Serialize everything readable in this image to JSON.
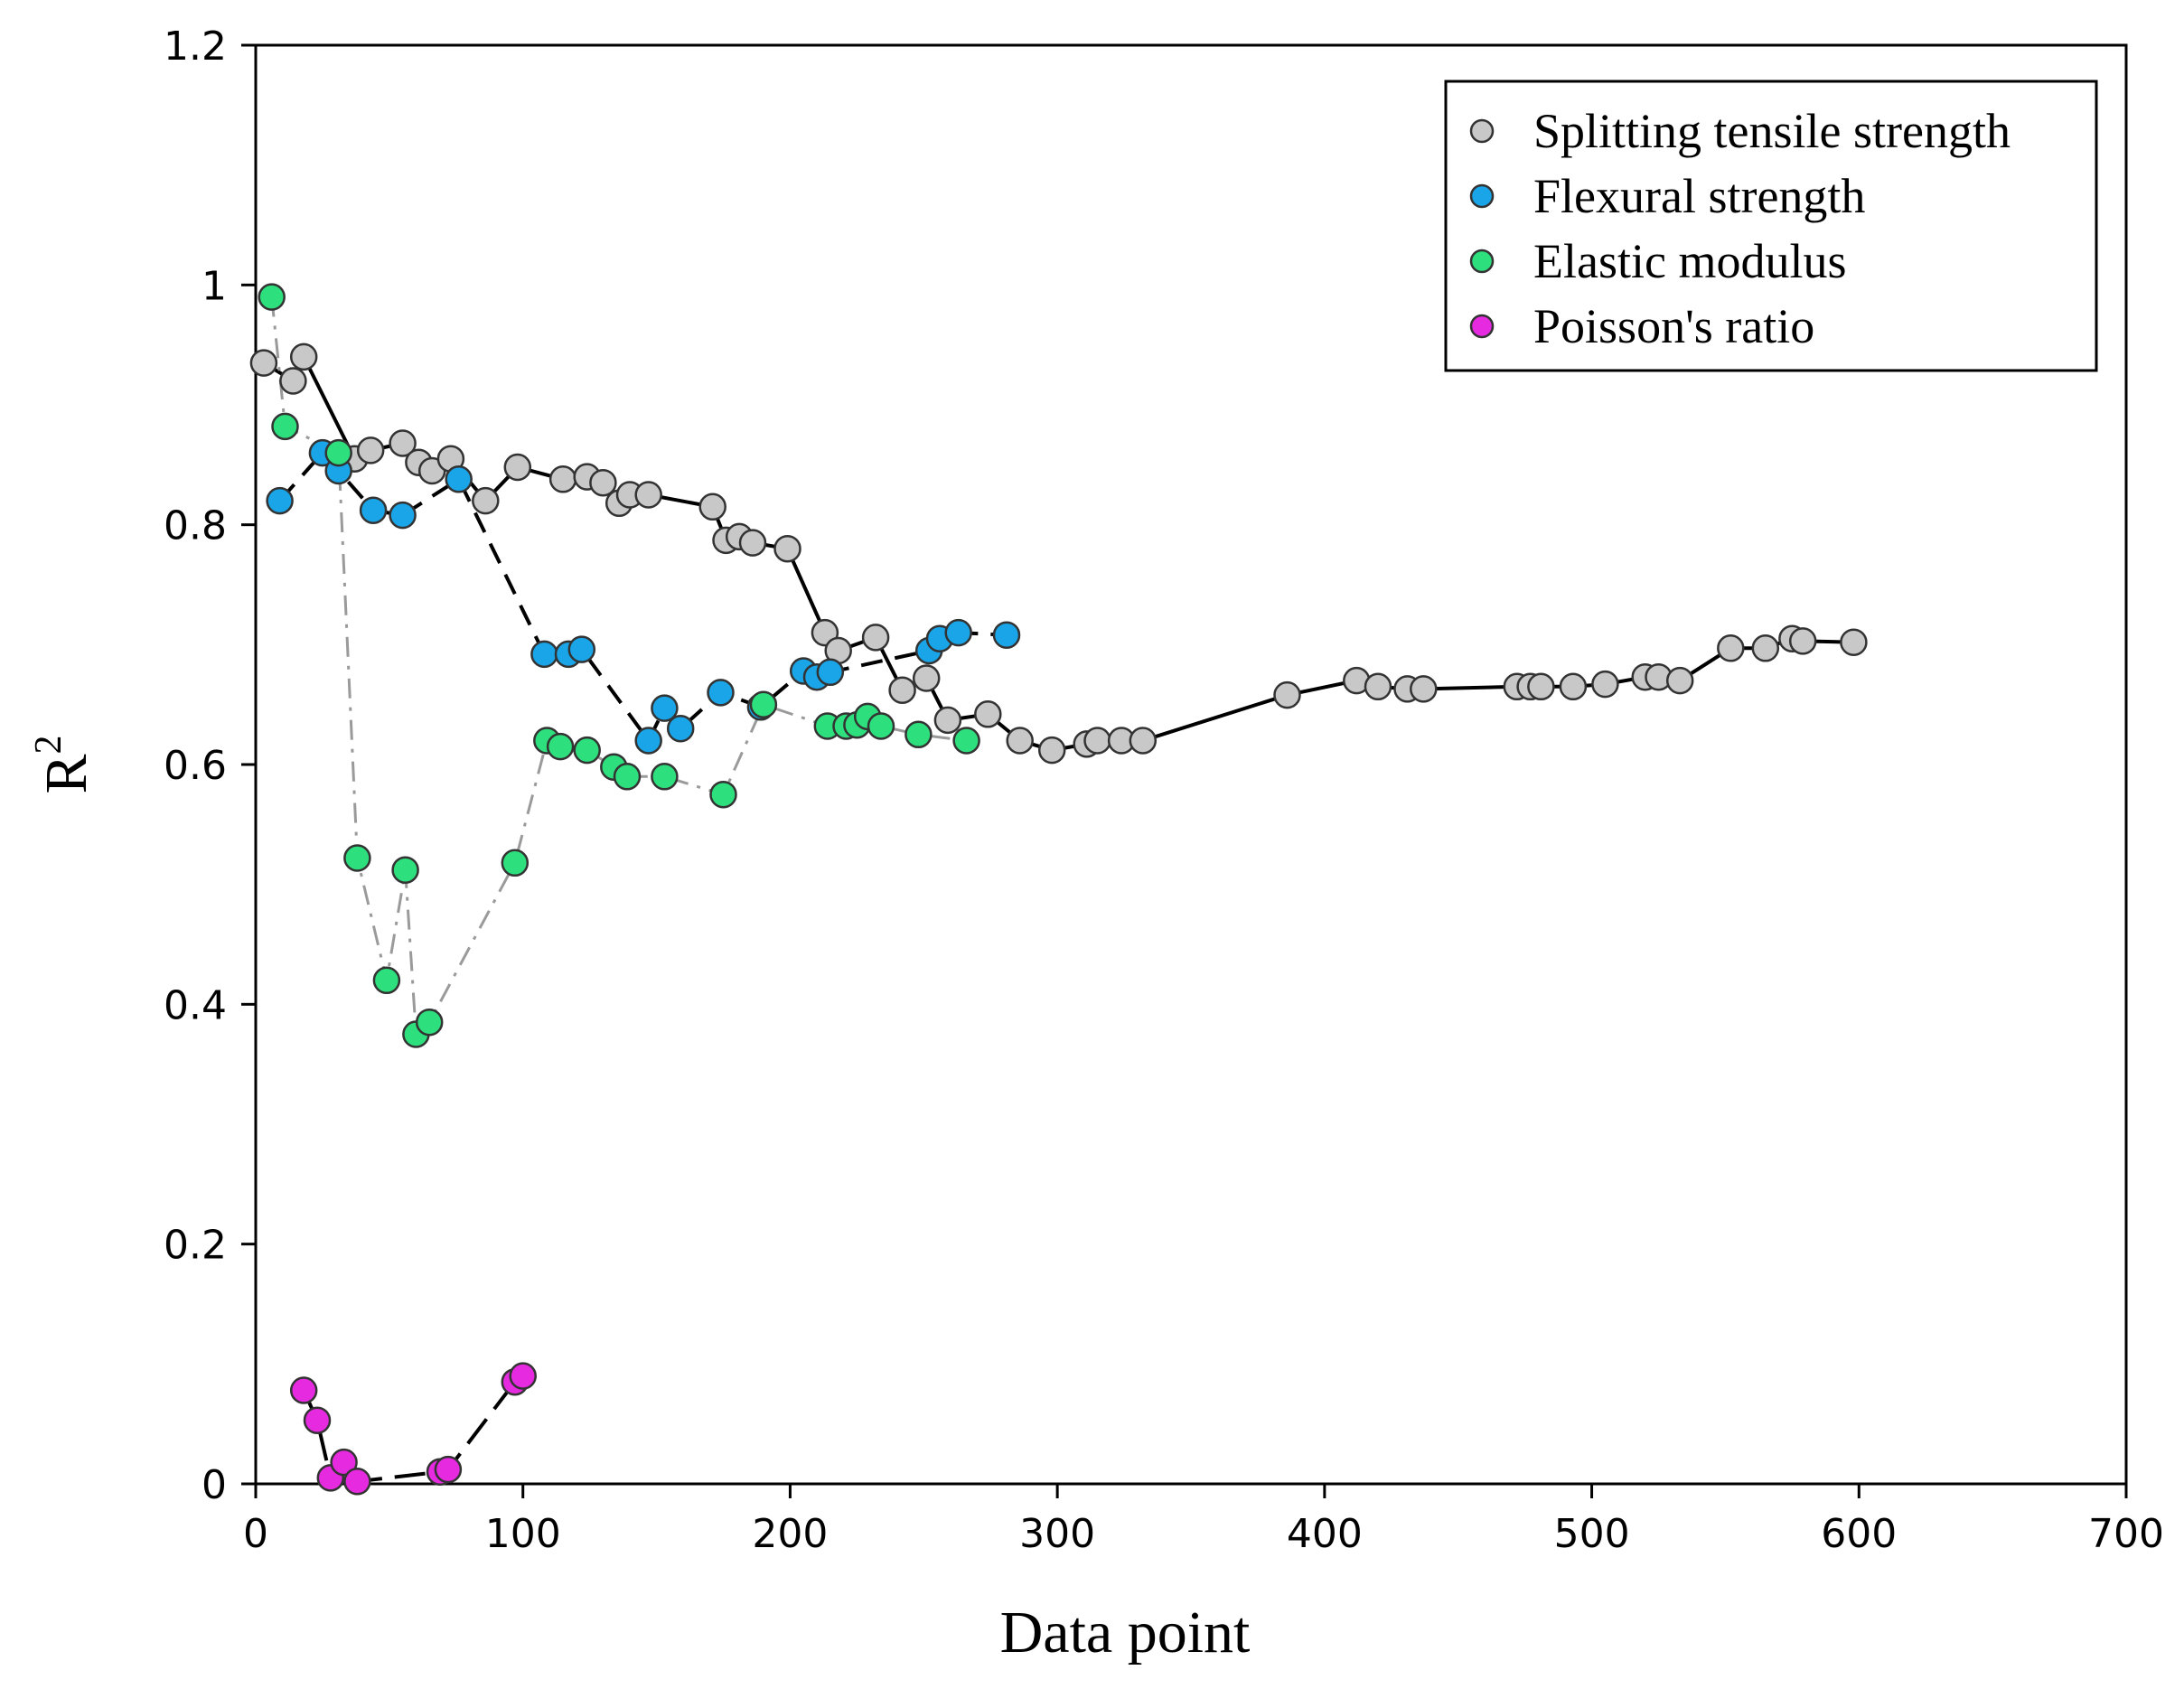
{
  "chart_data": {
    "type": "scatter",
    "title": "",
    "xlabel": "Data point",
    "ylabel": "R",
    "ylabel_superscript": "2",
    "xlim": [
      0,
      700
    ],
    "ylim": [
      0,
      1.2
    ],
    "xticks": [
      0,
      100,
      200,
      300,
      400,
      500,
      600,
      700
    ],
    "yticks": [
      0,
      0.2,
      0.4,
      0.6,
      0.8,
      1,
      1.2
    ],
    "xtick_labels": [
      "0",
      "100",
      "200",
      "300",
      "400",
      "500",
      "600",
      "700"
    ],
    "ytick_labels": [
      "0",
      "0.2",
      "0.4",
      "0.6",
      "0.8",
      "1",
      "1.2"
    ],
    "grid": false,
    "legend_position": "top-right",
    "series": [
      {
        "name": "Splitting tensile strength",
        "color": "#c8c8c8",
        "line_style": "solid",
        "line_color": "#000000",
        "points": [
          [
            3,
            0.935
          ],
          [
            14,
            0.92
          ],
          [
            18,
            0.94
          ],
          [
            37,
            0.855
          ],
          [
            43,
            0.862
          ],
          [
            55,
            0.868
          ],
          [
            61,
            0.852
          ],
          [
            66,
            0.845
          ],
          [
            73,
            0.855
          ],
          [
            86,
            0.82
          ],
          [
            98,
            0.848
          ],
          [
            115,
            0.838
          ],
          [
            124,
            0.84
          ],
          [
            130,
            0.835
          ],
          [
            136,
            0.818
          ],
          [
            140,
            0.825
          ],
          [
            147,
            0.825
          ],
          [
            171,
            0.815
          ],
          [
            176,
            0.787
          ],
          [
            181,
            0.79
          ],
          [
            186,
            0.785
          ],
          [
            199,
            0.78
          ],
          [
            213,
            0.71
          ],
          [
            218,
            0.695
          ],
          [
            232,
            0.706
          ],
          [
            242,
            0.662
          ],
          [
            251,
            0.672
          ],
          [
            259,
            0.637
          ],
          [
            274,
            0.642
          ],
          [
            286,
            0.62
          ],
          [
            298,
            0.612
          ],
          [
            311,
            0.617
          ],
          [
            315,
            0.62
          ],
          [
            324,
            0.62
          ],
          [
            332,
            0.62
          ],
          [
            386,
            0.658
          ],
          [
            412,
            0.67
          ],
          [
            420,
            0.665
          ],
          [
            431,
            0.663
          ],
          [
            437,
            0.663
          ],
          [
            472,
            0.665
          ],
          [
            477,
            0.665
          ],
          [
            481,
            0.665
          ],
          [
            493,
            0.665
          ],
          [
            505,
            0.667
          ],
          [
            520,
            0.673
          ],
          [
            525,
            0.673
          ],
          [
            533,
            0.67
          ],
          [
            552,
            0.697
          ],
          [
            565,
            0.697
          ],
          [
            575,
            0.705
          ],
          [
            579,
            0.703
          ],
          [
            598,
            0.702
          ]
        ]
      },
      {
        "name": "Flexural strength",
        "color": "#1aa5e8",
        "line_style": "dashed",
        "line_color": "#000000",
        "points": [
          [
            9,
            0.82
          ],
          [
            25,
            0.86
          ],
          [
            31,
            0.845
          ],
          [
            44,
            0.812
          ],
          [
            55,
            0.808
          ],
          [
            76,
            0.838
          ],
          [
            108,
            0.692
          ],
          [
            117,
            0.692
          ],
          [
            122,
            0.696
          ],
          [
            147,
            0.62
          ],
          [
            153,
            0.647
          ],
          [
            159,
            0.63
          ],
          [
            174,
            0.66
          ],
          [
            189,
            0.648
          ],
          [
            205,
            0.678
          ],
          [
            210,
            0.673
          ],
          [
            215,
            0.677
          ],
          [
            252,
            0.695
          ],
          [
            256,
            0.705
          ],
          [
            263,
            0.71
          ],
          [
            281,
            0.708
          ]
        ]
      },
      {
        "name": "Elastic modulus",
        "color": "#2ee07d",
        "line_style": "dash-dot",
        "line_color": "#9a9a9a",
        "points": [
          [
            6,
            0.99
          ],
          [
            11,
            0.882
          ],
          [
            31,
            0.86
          ],
          [
            38,
            0.522
          ],
          [
            49,
            0.42
          ],
          [
            56,
            0.512
          ],
          [
            60,
            0.375
          ],
          [
            65,
            0.385
          ],
          [
            97,
            0.518
          ],
          [
            109,
            0.62
          ],
          [
            114,
            0.615
          ],
          [
            124,
            0.612
          ],
          [
            134,
            0.598
          ],
          [
            139,
            0.59
          ],
          [
            153,
            0.59
          ],
          [
            175,
            0.575
          ],
          [
            190,
            0.65
          ],
          [
            214,
            0.632
          ],
          [
            221,
            0.632
          ],
          [
            225,
            0.633
          ],
          [
            229,
            0.64
          ],
          [
            234,
            0.632
          ],
          [
            248,
            0.625
          ],
          [
            266,
            0.62
          ]
        ]
      },
      {
        "name": "Poisson's ratio",
        "color": "#e62ae0",
        "line_style": "dashed-long",
        "line_color": "#000000",
        "points": [
          [
            18,
            0.078
          ],
          [
            23,
            0.053
          ],
          [
            28,
            0.005
          ],
          [
            33,
            0.018
          ],
          [
            38,
            0.002
          ],
          [
            69,
            0.01
          ],
          [
            72,
            0.012
          ],
          [
            97,
            0.085
          ],
          [
            100,
            0.09
          ]
        ]
      }
    ]
  }
}
